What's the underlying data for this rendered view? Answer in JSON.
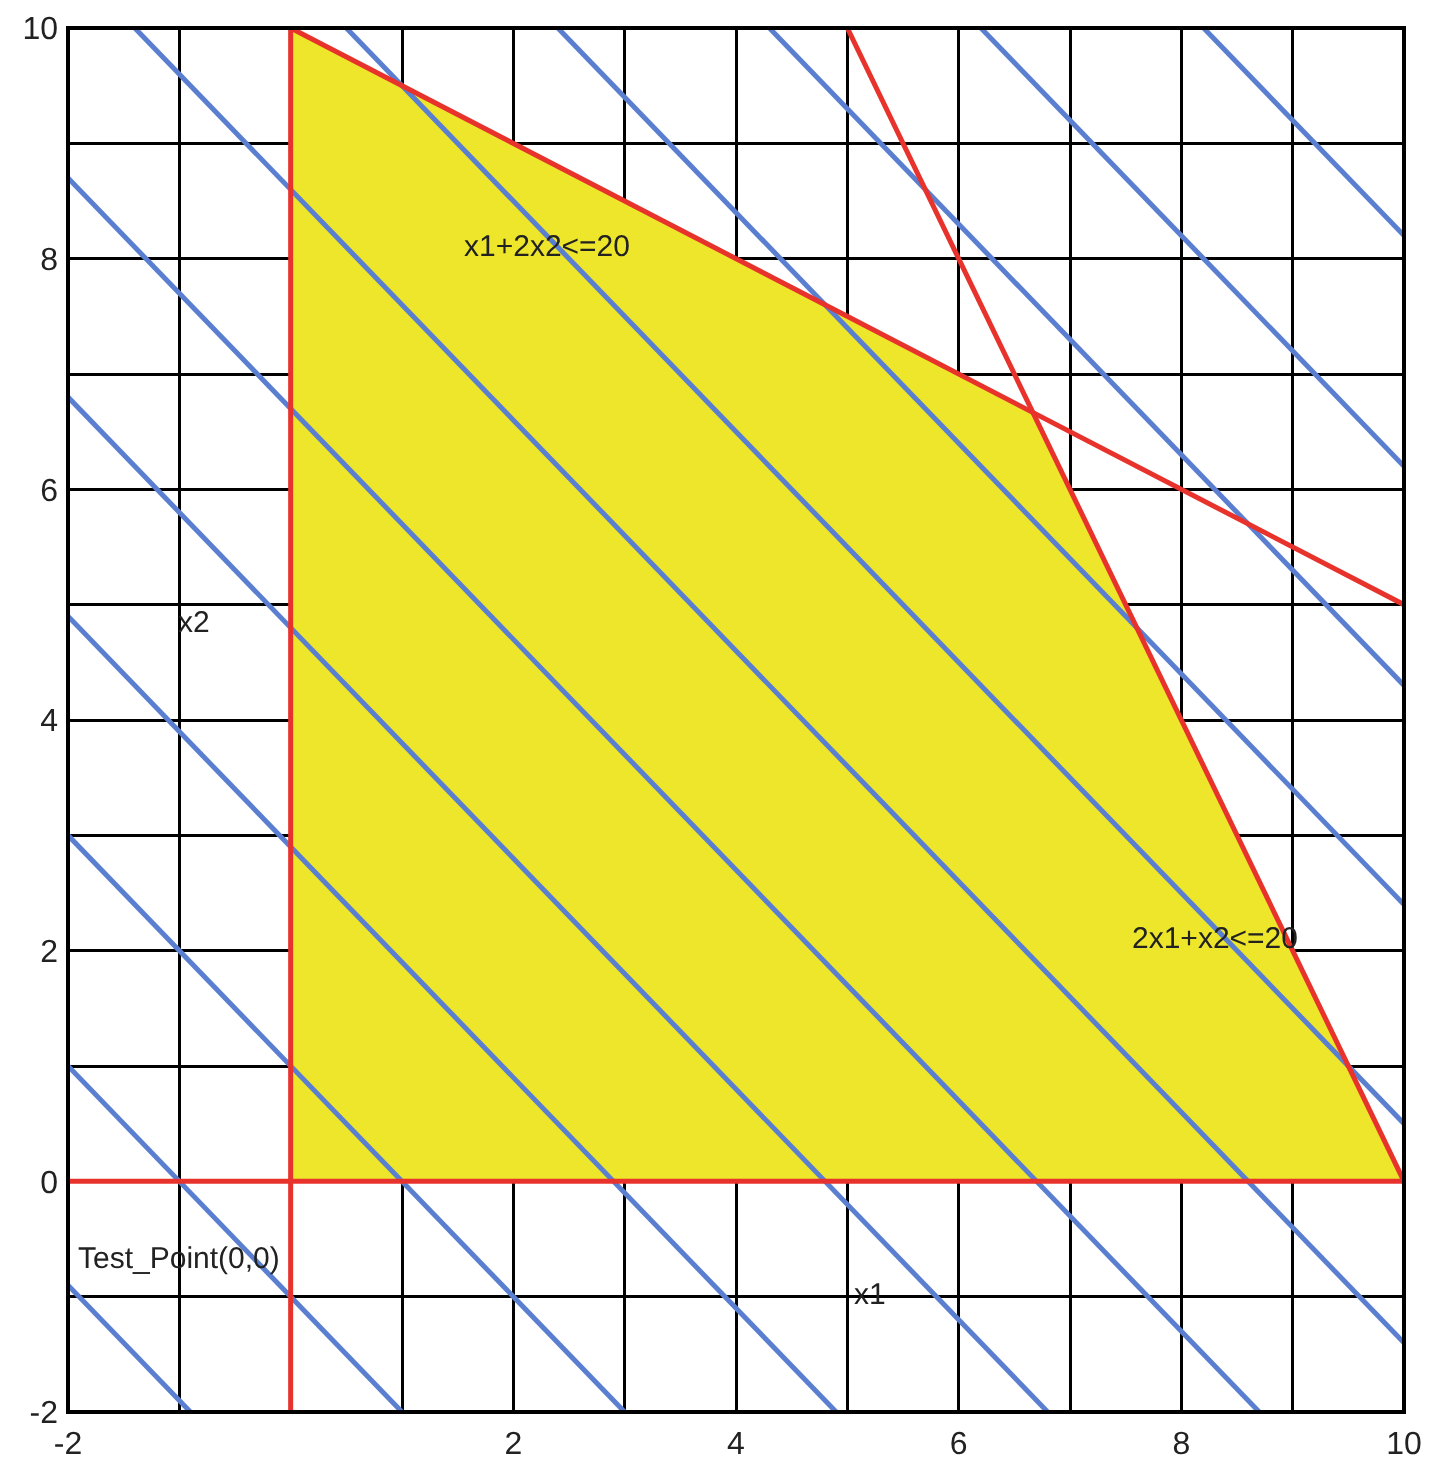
{
  "chart_data": {
    "type": "line",
    "xlabel": "x1",
    "ylabel": "x2",
    "xlim": [
      -2,
      10
    ],
    "ylim": [
      -2,
      10
    ],
    "xticks": [
      -2,
      {
        "value": -1,
        "label": null
      },
      {
        "value": 0,
        "label": null
      },
      {
        "value": 1,
        "label": null
      },
      2,
      {
        "value": 3,
        "label": null
      },
      4,
      {
        "value": 5,
        "label": null
      },
      6,
      {
        "value": 7,
        "label": null
      },
      8,
      {
        "value": 9,
        "label": null
      },
      10
    ],
    "yticks": [
      -2,
      {
        "value": -1,
        "label": null
      },
      0,
      {
        "value": 1,
        "label": null
      },
      2,
      {
        "value": 3,
        "label": null
      },
      4,
      {
        "value": 5,
        "label": null
      },
      6,
      {
        "value": 7,
        "label": null
      },
      8,
      {
        "value": 9,
        "label": null
      },
      10
    ],
    "grid": true,
    "series": [
      {
        "type": "area",
        "color": "#ede62a",
        "x": [
          0,
          6.67,
          10
        ],
        "values": [
          10,
          6.67,
          0
        ]
      },
      {
        "color": "#5b7fd0",
        "x": [
          -2,
          -0.9
        ],
        "values": [
          -0.9,
          -2
        ]
      },
      {
        "color": "#5b7fd0",
        "x": [
          -2,
          1
        ],
        "values": [
          1,
          -2
        ]
      },
      {
        "color": "#5b7fd0",
        "x": [
          -2,
          3
        ],
        "values": [
          3,
          -2
        ]
      },
      {
        "color": "#5b7fd0",
        "x": [
          -2,
          4.9
        ],
        "values": [
          4.9,
          -2
        ]
      },
      {
        "color": "#5b7fd0",
        "x": [
          -2,
          6.8
        ],
        "values": [
          6.8,
          -2
        ]
      },
      {
        "color": "#5b7fd0",
        "x": [
          -2,
          8.7
        ],
        "values": [
          8.7,
          -2
        ]
      },
      {
        "color": "#5b7fd0",
        "x": [
          -1.4,
          10
        ],
        "values": [
          10,
          -1.4
        ]
      },
      {
        "color": "#5b7fd0",
        "x": [
          0.5,
          10
        ],
        "values": [
          10,
          0.5
        ]
      },
      {
        "color": "#5b7fd0",
        "x": [
          2.4,
          10
        ],
        "values": [
          10,
          2.4
        ]
      },
      {
        "color": "#5b7fd0",
        "x": [
          4.3,
          10
        ],
        "values": [
          10,
          4.3
        ]
      },
      {
        "color": "#5b7fd0",
        "x": [
          6.2,
          10
        ],
        "values": [
          10,
          6.2
        ]
      },
      {
        "color": "#5b7fd0",
        "x": [
          8.2,
          10
        ],
        "values": [
          10,
          8.2
        ]
      },
      {
        "color": "#e8322c",
        "x": [
          0,
          10
        ],
        "values": [
          10,
          5
        ]
      },
      {
        "color": "#e8322c",
        "x": [
          5,
          10
        ],
        "values": [
          10,
          0
        ]
      },
      {
        "color": "#e8322c",
        "x": [
          0,
          0
        ],
        "values": [
          -2,
          10
        ]
      },
      {
        "color": "#e8322c",
        "x": [
          -2,
          10
        ],
        "values": [
          0,
          0
        ]
      }
    ],
    "annotations": [
      {
        "text": "x1+2x2<=20",
        "x": 2.3,
        "y": 8.1
      },
      {
        "text": "2x1+x2<=20",
        "x": 8.3,
        "y": 2.1
      },
      "Test_Point(0,0)"
    ]
  }
}
